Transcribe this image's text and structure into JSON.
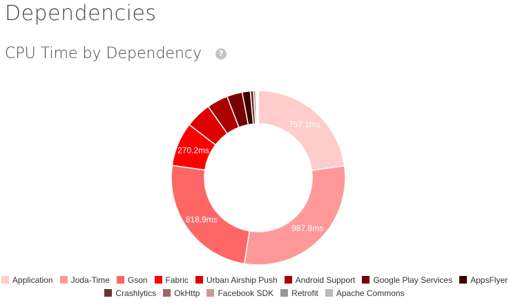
{
  "header": {
    "title": "Dependencies"
  },
  "section": {
    "title": "CPU Time by Dependency",
    "help_icon": "question-circle-icon"
  },
  "chart_data": {
    "type": "pie",
    "style": "donut",
    "title": "CPU Time by Dependency",
    "unit": "ms",
    "legend_position": "bottom",
    "slices": [
      {
        "name": "Application",
        "value": 757.1,
        "label": "757.1ms",
        "color": "#ffcccc"
      },
      {
        "name": "Joda-Time",
        "value": 987.8,
        "label": "987.8ms",
        "color": "#ff9999"
      },
      {
        "name": "Gson",
        "value": 818.9,
        "label": "818.9ms",
        "color": "#ff6666"
      },
      {
        "name": "Fabric",
        "value": 270.2,
        "label": "270.2ms",
        "color": "#ff0000"
      },
      {
        "name": "Urban Airship Push",
        "value": 160,
        "label": "",
        "color": "#dd0000"
      },
      {
        "name": "Android Support",
        "value": 130,
        "label": "",
        "color": "#aa0000"
      },
      {
        "name": "Google Play Services",
        "value": 95,
        "label": "",
        "color": "#770000"
      },
      {
        "name": "AppsFlyer",
        "value": 50,
        "label": "",
        "color": "#440000"
      },
      {
        "name": "Crashlytics",
        "value": 20,
        "label": "",
        "color": "#663333"
      },
      {
        "name": "OkHttp",
        "value": 12,
        "label": "",
        "color": "#996666"
      },
      {
        "name": "Facebook SDK",
        "value": 8,
        "label": "",
        "color": "#cc9999"
      },
      {
        "name": "Retrofit",
        "value": 5,
        "label": "",
        "color": "#999999"
      },
      {
        "name": "Apache Commons",
        "value": 4,
        "label": "",
        "color": "#bbbbbb"
      }
    ]
  }
}
